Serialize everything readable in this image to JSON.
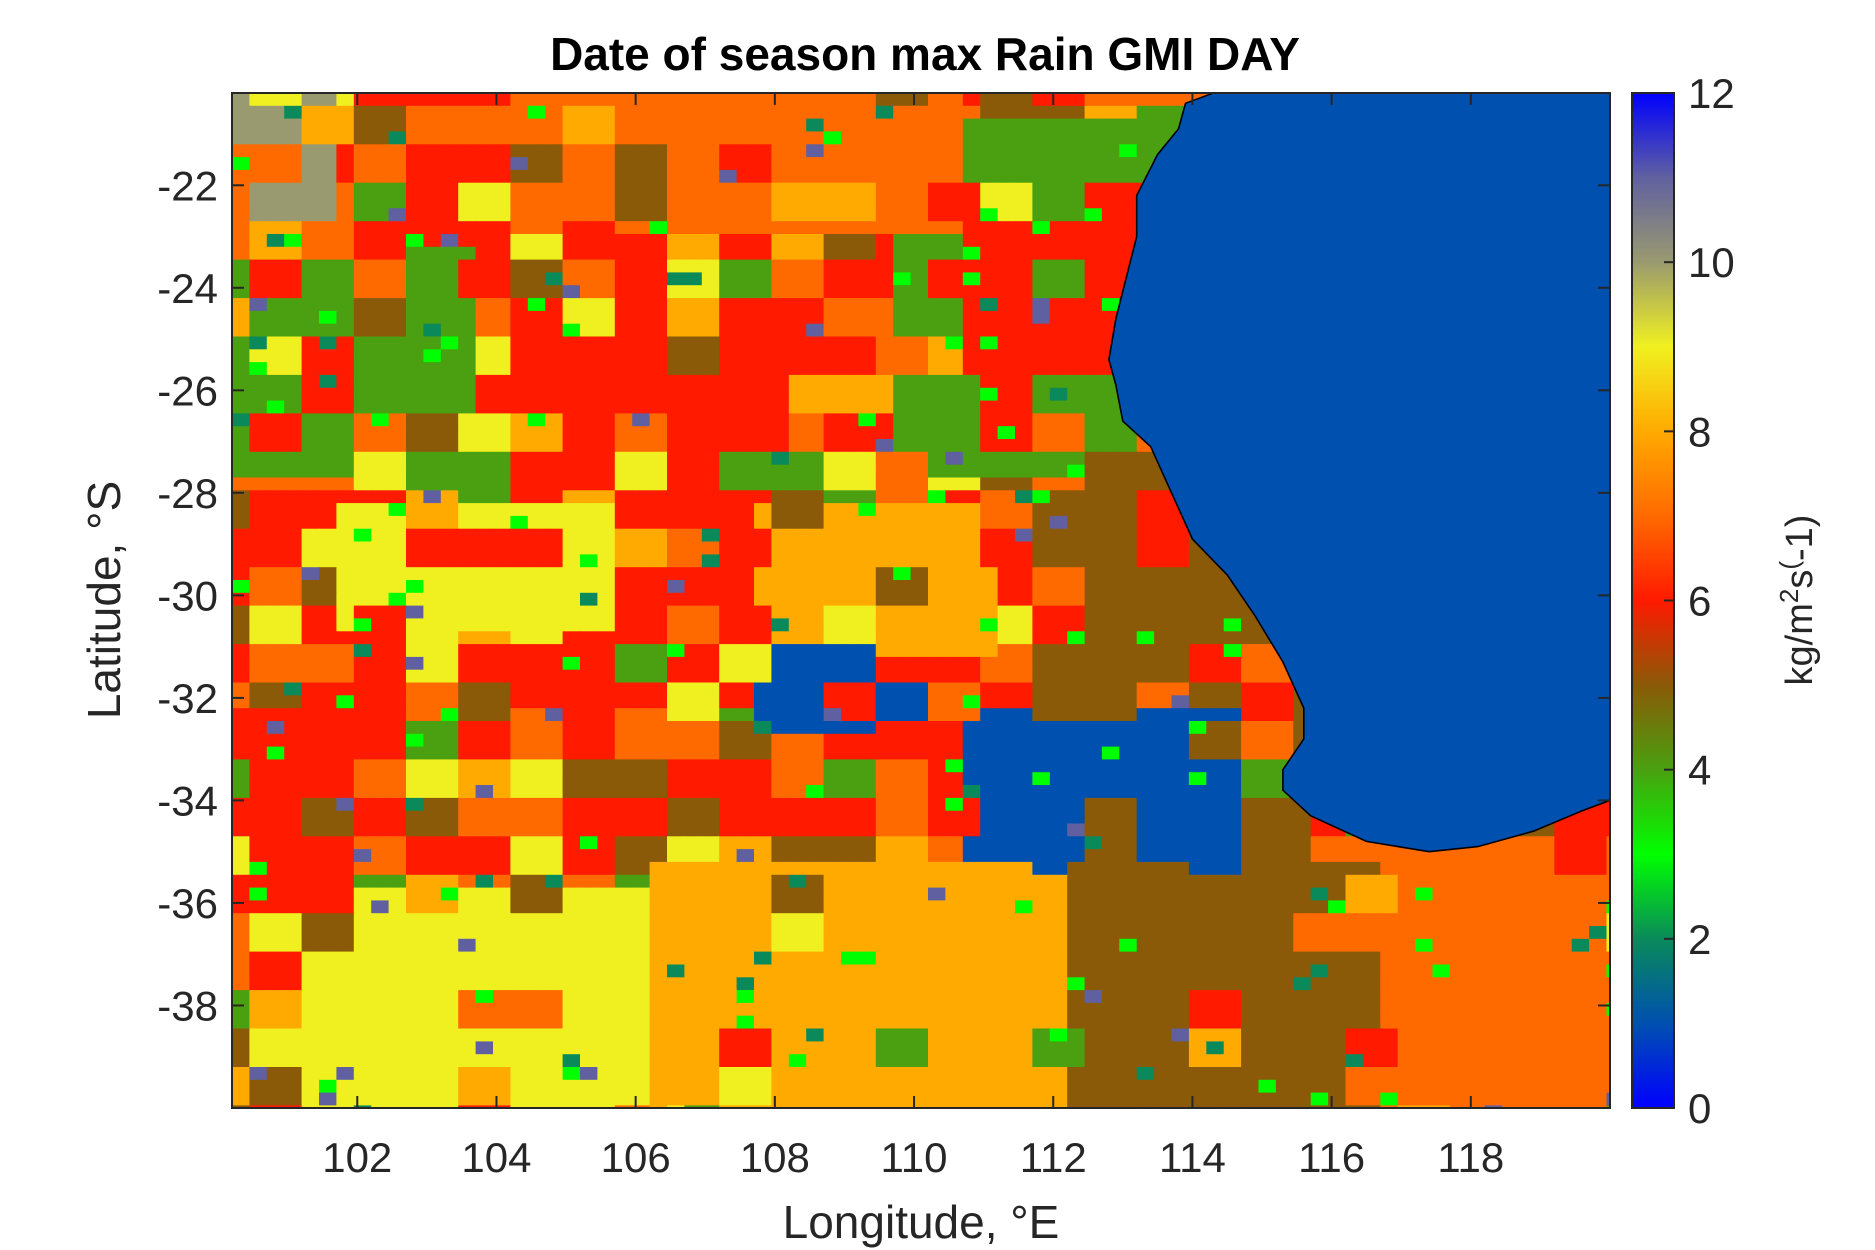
{
  "chart_data": {
    "type": "heatmap",
    "title": "Date of season max Rain GMI DAY",
    "xlabel": "Longitude, °E",
    "ylabel": "Latitude, °S",
    "colorbar_label": "kg/m²s⁽-1)",
    "colorbar_label_parts": {
      "base": "kg/m",
      "sup1": "2",
      "mid": "s",
      "sup2": "(",
      "end": "-1)"
    },
    "xlim": [
      100.2,
      120
    ],
    "ylim": [
      -40,
      -20.2
    ],
    "x_ticks": [
      102,
      104,
      106,
      108,
      110,
      112,
      114,
      116,
      118
    ],
    "x_tick_labels": [
      "102",
      "104",
      "106",
      "108",
      "110",
      "112",
      "114",
      "116",
      "118"
    ],
    "y_ticks": [
      -22,
      -24,
      -26,
      -28,
      -30,
      -32,
      -34,
      -36,
      -38
    ],
    "y_tick_labels": [
      "-22",
      "-24",
      "-26",
      "-28",
      "-30",
      "-32",
      "-34",
      "-36",
      "-38"
    ],
    "clim": [
      0,
      12
    ],
    "colorbar_ticks": [
      0,
      2,
      4,
      6,
      8,
      10,
      12
    ],
    "colorbar_tick_labels": [
      "0",
      "2",
      "4",
      "6",
      "8",
      "10",
      "12"
    ],
    "colormap_stops": [
      {
        "v": 0,
        "color": "#0000ff"
      },
      {
        "v": 1,
        "color": "#0050b0"
      },
      {
        "v": 2,
        "color": "#0a8a5a"
      },
      {
        "v": 3,
        "color": "#00ff00"
      },
      {
        "v": 4,
        "color": "#4aa010"
      },
      {
        "v": 5,
        "color": "#8a5a08"
      },
      {
        "v": 6,
        "color": "#ff1a00"
      },
      {
        "v": 7,
        "color": "#ff6a00"
      },
      {
        "v": 8,
        "color": "#ffaa00"
      },
      {
        "v": 9,
        "color": "#f0f020"
      },
      {
        "v": 10,
        "color": "#9a9a70"
      },
      {
        "v": 11,
        "color": "#6060a0"
      },
      {
        "v": 12,
        "color": "#0000ff"
      }
    ],
    "ocean_value": 1,
    "ocean_color": "#0050b0",
    "coastline_color": "#000000",
    "grid": false,
    "regions": [
      {
        "name": "ne-green-mix",
        "lon": [
          109.5,
          113.5
        ],
        "lat": [
          -27.5,
          -20.5
        ],
        "value": 4
      },
      {
        "name": "west-green",
        "lon": [
          100.2,
          103.5
        ],
        "lat": [
          -27.5,
          -23.2
        ],
        "value": 4
      },
      {
        "name": "central-red",
        "lon": [
          104.0,
          108.0
        ],
        "lat": [
          -32.0,
          -24.0
        ],
        "value": 6
      },
      {
        "name": "north-orange",
        "lon": [
          104.0,
          110.5
        ],
        "lat": [
          -22.8,
          -20.2
        ],
        "value": 7
      },
      {
        "name": "ne-red",
        "lon": [
          110.5,
          113.2
        ],
        "lat": [
          -27.0,
          -22.5
        ],
        "value": 6
      },
      {
        "name": "east-brown",
        "lon": [
          111.5,
          115.5
        ],
        "lat": [
          -35.5,
          -27.0
        ],
        "value": 5
      },
      {
        "name": "center-amber",
        "lon": [
          107.5,
          111.0
        ],
        "lat": [
          -31.0,
          -28.0
        ],
        "value": 8
      },
      {
        "name": "inland-blue-west",
        "lon": [
          107.5,
          110.0
        ],
        "lat": [
          -32.5,
          -30.8
        ],
        "value": 1
      },
      {
        "name": "inland-blue-east",
        "lon": [
          110.5,
          114.5
        ],
        "lat": [
          -35.5,
          -32.0
        ],
        "value": 1
      },
      {
        "name": "west-yellow",
        "lon": [
          101.5,
          105.5
        ],
        "lat": [
          -30.5,
          -28.0
        ],
        "value": 9
      },
      {
        "name": "south-yellow",
        "lon": [
          101.0,
          106.5
        ],
        "lat": [
          -40.0,
          -35.5
        ],
        "value": 9
      },
      {
        "name": "south-amber",
        "lon": [
          106.0,
          112.0
        ],
        "lat": [
          -40.0,
          -35.0
        ],
        "value": 8
      },
      {
        "name": "sw-red",
        "lon": [
          100.2,
          102.5
        ],
        "lat": [
          -36.0,
          -32.0
        ],
        "value": 6
      },
      {
        "name": "se-orange",
        "lon": [
          115.5,
          120.0
        ],
        "lat": [
          -40.0,
          -34.5
        ],
        "value": 7
      },
      {
        "name": "south-brown",
        "lon": [
          112.0,
          116.5
        ],
        "lat": [
          -40.0,
          -35.0
        ],
        "value": 5
      },
      {
        "name": "nw-khaki",
        "lon": [
          100.2,
          101.5
        ],
        "lat": [
          -22.5,
          -20.2
        ],
        "value": 10
      }
    ]
  }
}
